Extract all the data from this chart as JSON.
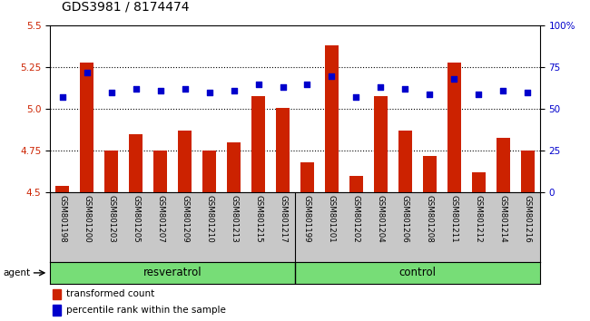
{
  "title": "GDS3981 / 8174474",
  "samples": [
    "GSM801198",
    "GSM801200",
    "GSM801203",
    "GSM801205",
    "GSM801207",
    "GSM801209",
    "GSM801210",
    "GSM801213",
    "GSM801215",
    "GSM801217",
    "GSM801199",
    "GSM801201",
    "GSM801202",
    "GSM801204",
    "GSM801206",
    "GSM801208",
    "GSM801211",
    "GSM801212",
    "GSM801214",
    "GSM801216"
  ],
  "transformed_count": [
    4.54,
    5.28,
    4.75,
    4.85,
    4.75,
    4.87,
    4.75,
    4.8,
    5.08,
    5.01,
    4.68,
    5.38,
    4.6,
    5.08,
    4.87,
    4.72,
    5.28,
    4.62,
    4.83,
    4.75
  ],
  "percentile_rank": [
    57,
    72,
    60,
    62,
    61,
    62,
    60,
    61,
    65,
    63,
    65,
    70,
    57,
    63,
    62,
    59,
    68,
    59,
    61,
    60
  ],
  "bar_color": "#CC2200",
  "dot_color": "#0000CC",
  "group_color": "#77DD77",
  "ylim_left": [
    4.5,
    5.5
  ],
  "ylim_right": [
    0,
    100
  ],
  "yticks_left": [
    4.5,
    4.75,
    5.0,
    5.25,
    5.5
  ],
  "yticks_right": [
    0,
    25,
    50,
    75,
    100
  ],
  "ytick_labels_right": [
    "0",
    "25",
    "50",
    "75",
    "100%"
  ],
  "hlines": [
    4.75,
    5.0,
    5.25
  ],
  "bar_width": 0.55,
  "legend_labels": [
    "transformed count",
    "percentile rank within the sample"
  ],
  "agent_label": "agent",
  "group_label_resveratrol": "resveratrol",
  "group_label_control": "control",
  "resveratrol_count": 10,
  "control_count": 10
}
